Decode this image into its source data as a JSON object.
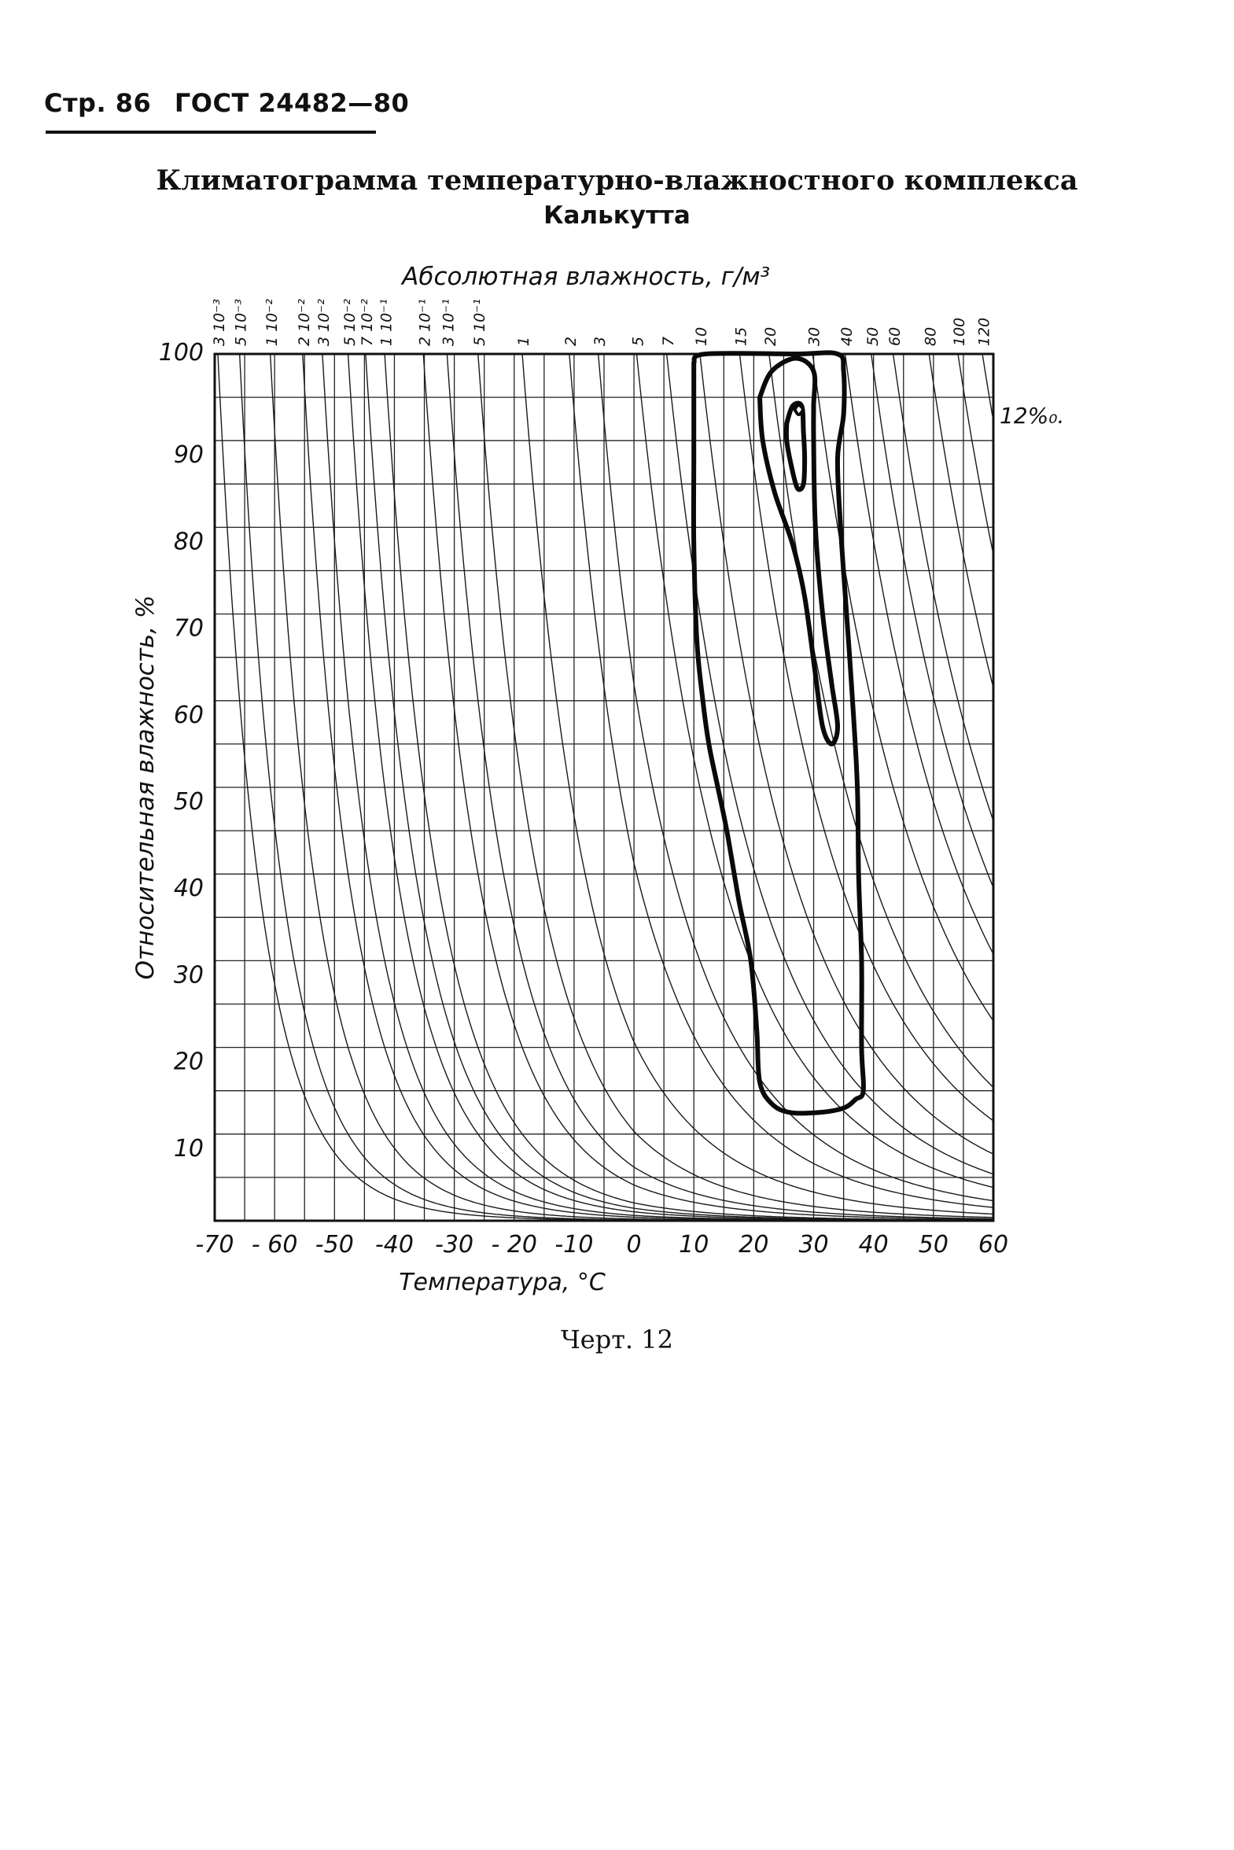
{
  "header": {
    "page": "Стр. 86",
    "standard": "ГОСТ 24482—80"
  },
  "title": {
    "line1": "Климатограмма температурно-влажностного комплекса",
    "line2": "Калькутта"
  },
  "caption": "Черт. 12",
  "chart_data": {
    "type": "contour",
    "title": "Климатограмма температурно-влажностного комплекса Калькутта",
    "xlabel": "Температура, °C",
    "ylabel": "Относительная влажность, %",
    "top_axis_label": "Абсолютная влажность, г/м³",
    "xlim": [
      -70,
      60
    ],
    "ylim": [
      0,
      100
    ],
    "x_ticks": [
      {
        "value": -70,
        "label": "-70"
      },
      {
        "value": -60,
        "label": "- 60"
      },
      {
        "value": -50,
        "label": "-50"
      },
      {
        "value": -40,
        "label": "-40"
      },
      {
        "value": -30,
        "label": "-30"
      },
      {
        "value": -20,
        "label": "- 20"
      },
      {
        "value": -10,
        "label": "-10"
      },
      {
        "value": 0,
        "label": "0"
      },
      {
        "value": 10,
        "label": "10"
      },
      {
        "value": 20,
        "label": "20"
      },
      {
        "value": 30,
        "label": "30"
      },
      {
        "value": 40,
        "label": "40"
      },
      {
        "value": 50,
        "label": "50"
      },
      {
        "value": 60,
        "label": "60"
      }
    ],
    "y_ticks": [
      {
        "value": 10,
        "label": "10"
      },
      {
        "value": 20,
        "label": "20"
      },
      {
        "value": 30,
        "label": "30"
      },
      {
        "value": 40,
        "label": "40"
      },
      {
        "value": 50,
        "label": "50"
      },
      {
        "value": 60,
        "label": "60"
      },
      {
        "value": 70,
        "label": "70"
      },
      {
        "value": 80,
        "label": "80"
      },
      {
        "value": 90,
        "label": "90"
      },
      {
        "value": 100,
        "label": "100"
      }
    ],
    "grid": {
      "x_step": 5,
      "y_step": 5
    },
    "absolute_humidity_isolines": [
      {
        "value": 0.003,
        "label": "3 10⁻³"
      },
      {
        "value": 0.005,
        "label": "5 10⁻³"
      },
      {
        "value": 0.01,
        "label": "1 10⁻²"
      },
      {
        "value": 0.02,
        "label": "2 10⁻²"
      },
      {
        "value": 0.03,
        "label": "3 10⁻²"
      },
      {
        "value": 0.05,
        "label": "5 10⁻²"
      },
      {
        "value": 0.07,
        "label": "7 10⁻²"
      },
      {
        "value": 0.1,
        "label": "1 10⁻¹"
      },
      {
        "value": 0.2,
        "label": "2 10⁻¹"
      },
      {
        "value": 0.3,
        "label": "3 10⁻¹"
      },
      {
        "value": 0.5,
        "label": "5 10⁻¹"
      },
      {
        "value": 1,
        "label": "1"
      },
      {
        "value": 2,
        "label": "2"
      },
      {
        "value": 3,
        "label": "3"
      },
      {
        "value": 5,
        "label": "5"
      },
      {
        "value": 7,
        "label": "7"
      },
      {
        "value": 10,
        "label": "10"
      },
      {
        "value": 15,
        "label": "15"
      },
      {
        "value": 20,
        "label": "20"
      },
      {
        "value": 30,
        "label": "30"
      },
      {
        "value": 40,
        "label": "40"
      },
      {
        "value": 50,
        "label": "50"
      },
      {
        "value": 60,
        "label": "60"
      },
      {
        "value": 80,
        "label": "80"
      },
      {
        "value": 100,
        "label": "100"
      },
      {
        "value": 120,
        "label": "120"
      }
    ],
    "contours": [
      {
        "name": "outer",
        "points": [
          [
            10,
            99
          ],
          [
            12,
            100
          ],
          [
            27,
            100
          ],
          [
            34,
            100
          ],
          [
            35,
            98
          ],
          [
            35,
            93
          ],
          [
            34,
            88
          ],
          [
            34.5,
            80
          ],
          [
            35.5,
            70
          ],
          [
            36.5,
            60
          ],
          [
            37.3,
            50
          ],
          [
            37.5,
            40
          ],
          [
            38,
            30
          ],
          [
            38,
            20
          ],
          [
            38.3,
            15
          ],
          [
            37,
            14
          ],
          [
            35,
            13
          ],
          [
            31,
            12.5
          ],
          [
            26,
            12.5
          ],
          [
            23,
            13.5
          ],
          [
            21,
            16
          ],
          [
            20.5,
            22
          ],
          [
            19.5,
            30
          ],
          [
            17.5,
            37
          ],
          [
            15.5,
            45
          ],
          [
            14,
            50
          ],
          [
            12.5,
            55
          ],
          [
            11.5,
            60
          ],
          [
            10.5,
            67
          ],
          [
            10,
            78
          ],
          [
            10,
            88
          ],
          [
            10,
            95
          ],
          [
            10,
            99
          ]
        ]
      },
      {
        "name": "middle",
        "points": [
          [
            21,
            95
          ],
          [
            23,
            98
          ],
          [
            27,
            99.5
          ],
          [
            30,
            98
          ],
          [
            30,
            94
          ],
          [
            30,
            90
          ],
          [
            30.3,
            80
          ],
          [
            31.5,
            70
          ],
          [
            33,
            62
          ],
          [
            34,
            57
          ],
          [
            33,
            55
          ],
          [
            31.5,
            57
          ],
          [
            30.3,
            63
          ],
          [
            28.5,
            72
          ],
          [
            26.5,
            78
          ],
          [
            23.5,
            84
          ],
          [
            21.5,
            90
          ],
          [
            21,
            95
          ]
        ]
      },
      {
        "name": "inner",
        "points": [
          [
            25.5,
            92
          ],
          [
            26.5,
            94
          ],
          [
            28,
            94
          ],
          [
            28.3,
            91
          ],
          [
            28.5,
            88
          ],
          [
            28.3,
            85
          ],
          [
            27.3,
            84.5
          ],
          [
            26.3,
            87
          ],
          [
            25.5,
            90
          ],
          [
            25.5,
            92
          ]
        ]
      },
      {
        "name": "core",
        "points": [
          [
            26.8,
            93.6
          ],
          [
            27.5,
            94.1
          ],
          [
            28.2,
            93.6
          ],
          [
            27.5,
            93
          ],
          [
            26.8,
            93.6
          ]
        ]
      }
    ],
    "annotations": [
      {
        "text": "12%₀.",
        "x": 60,
        "y": 94
      }
    ]
  }
}
